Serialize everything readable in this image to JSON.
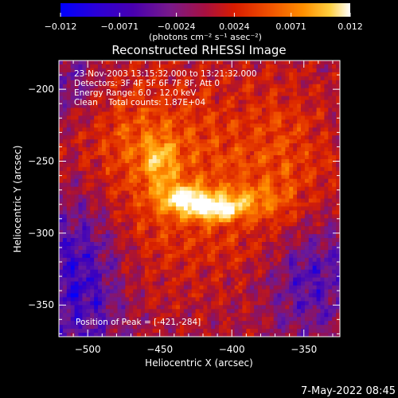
{
  "chart_data": {
    "type": "heatmap",
    "title": "Reconstructed RHESSI Image",
    "xlabel": "Heliocentric X (arcsec)",
    "ylabel": "Heliocentric Y (arcsec)",
    "xlim": [
      -520,
      -325
    ],
    "ylim": [
      -372,
      -180
    ],
    "x_ticks": [
      -500,
      -450,
      -400,
      -350
    ],
    "y_ticks": [
      -200,
      -250,
      -300,
      -350
    ],
    "x_tick_labels": [
      "−500",
      "−450",
      "−400",
      "−350"
    ],
    "y_tick_labels": [
      "−200",
      "−250",
      "−300",
      "−350"
    ],
    "annotations": [
      "23-Nov-2003 13:15:32.000 to 13:21:32.000",
      "Detectors: 3F 4F 5F 6F 7F 8F, Att 0",
      "Energy Range: 6.0 - 12.0 keV",
      "Clean    Total counts: 1.87E+04"
    ],
    "peak_label": "Position of Peak = [-421,-284]",
    "peak": [
      -421,
      -284
    ],
    "colorbar": {
      "min": -0.012,
      "max": 0.012,
      "ticks": [
        -0.012,
        -0.0071,
        -0.0024,
        0.0024,
        0.0071,
        0.012
      ],
      "tick_labels": [
        "−0.012",
        "−0.0071",
        "−0.0024",
        "0.0024",
        "0.0071",
        "0.012"
      ],
      "units": "(photons cm⁻² s⁻¹ asec⁻²)"
    },
    "colormap": [
      "#0000ff",
      "#3a00c0",
      "#6a1a9a",
      "#a01040",
      "#d82000",
      "#f05000",
      "#ff9000",
      "#ffd040",
      "#ffffff"
    ]
  },
  "footer": {
    "date": "7-May-2022 08:45"
  }
}
